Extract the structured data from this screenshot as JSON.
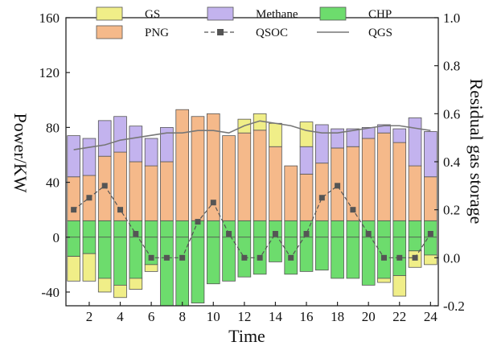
{
  "chart_data": {
    "type": "bar",
    "xlabel": "Time",
    "ylabel": "Power/KW",
    "y2label": "Residual gas storage",
    "x": [
      1,
      2,
      3,
      4,
      5,
      6,
      7,
      8,
      9,
      10,
      11,
      12,
      13,
      14,
      15,
      16,
      17,
      18,
      19,
      20,
      21,
      22,
      23,
      24
    ],
    "x_ticks": [
      2,
      4,
      6,
      8,
      10,
      12,
      14,
      16,
      18,
      20,
      22,
      24
    ],
    "x_tick_labels": [
      "2",
      "4",
      "6",
      "8",
      "10",
      "12",
      "14",
      "16",
      "18",
      "20",
      "22",
      "24"
    ],
    "ylim": [
      -50,
      160
    ],
    "y_ticks": [
      -40,
      0,
      40,
      80,
      120,
      160
    ],
    "y_tick_labels": [
      "-40",
      "0",
      "40",
      "80",
      "120",
      "160"
    ],
    "y2lim": [
      -0.2,
      1.0
    ],
    "y2_ticks": [
      -0.2,
      0.0,
      0.2,
      0.4,
      0.6,
      0.8,
      1.0
    ],
    "y2_tick_labels": [
      "-0.2",
      "0.0",
      "0.2",
      "0.4",
      "0.6",
      "0.8",
      "1.0"
    ],
    "bar_base": 12,
    "colors": {
      "GS": "#f0ee88",
      "PNG": "#f5b98a",
      "Methane": "#c3b3ee",
      "CHP": "#6ddc6d",
      "QSOC": "#555555",
      "QGS": "#777777",
      "edge": "#555555"
    },
    "series": [
      {
        "name": "GS",
        "kind": "bar",
        "positive": [
          0,
          0,
          0,
          0,
          0,
          0,
          0,
          0,
          0,
          0,
          0,
          10,
          12,
          17,
          0,
          18,
          0,
          0,
          0,
          0,
          0,
          0,
          0,
          0
        ],
        "negative": [
          -18,
          -20,
          -10,
          -9,
          -8,
          -5,
          0,
          0,
          0,
          0,
          0,
          0,
          0,
          0,
          0,
          0,
          0,
          0,
          0,
          0,
          -3,
          -15,
          -12,
          -7
        ]
      },
      {
        "name": "PNG",
        "kind": "bar",
        "positive": [
          32,
          33,
          47,
          50,
          43,
          40,
          43,
          81,
          76,
          78,
          62,
          64,
          66,
          54,
          40,
          34,
          42,
          53,
          54,
          60,
          64,
          57,
          40,
          32
        ],
        "negative": [
          0,
          0,
          0,
          0,
          0,
          0,
          0,
          0,
          0,
          0,
          0,
          0,
          0,
          0,
          0,
          0,
          0,
          0,
          0,
          0,
          0,
          0,
          0,
          0
        ]
      },
      {
        "name": "Methane",
        "kind": "bar",
        "positive": [
          30,
          27,
          26,
          26,
          26,
          20,
          25,
          0,
          0,
          0,
          0,
          0,
          0,
          0,
          0,
          20,
          28,
          14,
          13,
          8,
          6,
          10,
          35,
          33
        ],
        "negative": [
          0,
          0,
          0,
          0,
          0,
          0,
          0,
          0,
          0,
          0,
          0,
          0,
          0,
          0,
          0,
          0,
          0,
          0,
          0,
          0,
          0,
          0,
          0,
          0
        ]
      },
      {
        "name": "CHP",
        "kind": "bar",
        "positive": [
          13,
          13,
          13,
          13,
          13,
          13,
          13,
          13,
          13,
          13,
          13,
          13,
          13,
          13,
          13,
          13,
          13,
          13,
          13,
          13,
          13,
          13,
          13,
          13
        ],
        "negative": [
          -14,
          -12,
          -30,
          -35,
          -30,
          -20,
          -50,
          -50,
          -48,
          -34,
          -32,
          -29,
          -27,
          -18,
          -27,
          -25,
          -24,
          -30,
          -30,
          -35,
          -30,
          -28,
          -10,
          -13
        ]
      },
      {
        "name": "QSOC",
        "kind": "line-marker",
        "axis": "y2",
        "values": [
          0.2,
          0.25,
          0.3,
          0.2,
          0.1,
          0.0,
          0.0,
          0.0,
          0.15,
          0.23,
          0.1,
          0.0,
          0.0,
          0.1,
          0.0,
          0.1,
          0.25,
          0.3,
          0.2,
          0.1,
          0.0,
          0.0,
          0.0,
          0.1
        ]
      },
      {
        "name": "QGS",
        "kind": "line",
        "axis": "y2",
        "values": [
          0.45,
          0.46,
          0.47,
          0.49,
          0.5,
          0.51,
          0.52,
          0.52,
          0.53,
          0.53,
          0.52,
          0.55,
          0.57,
          0.56,
          0.55,
          0.53,
          0.52,
          0.52,
          0.53,
          0.54,
          0.55,
          0.55,
          0.54,
          0.53
        ]
      }
    ],
    "legend": {
      "placement": "top",
      "entries": [
        {
          "name": "GS",
          "marker": "box"
        },
        {
          "name": "Methane",
          "marker": "box"
        },
        {
          "name": "CHP",
          "marker": "box"
        },
        {
          "name": "PNG",
          "marker": "box"
        },
        {
          "name": "QSOC",
          "marker": "line-square"
        },
        {
          "name": "QGS",
          "marker": "line"
        }
      ]
    },
    "grid": false
  }
}
